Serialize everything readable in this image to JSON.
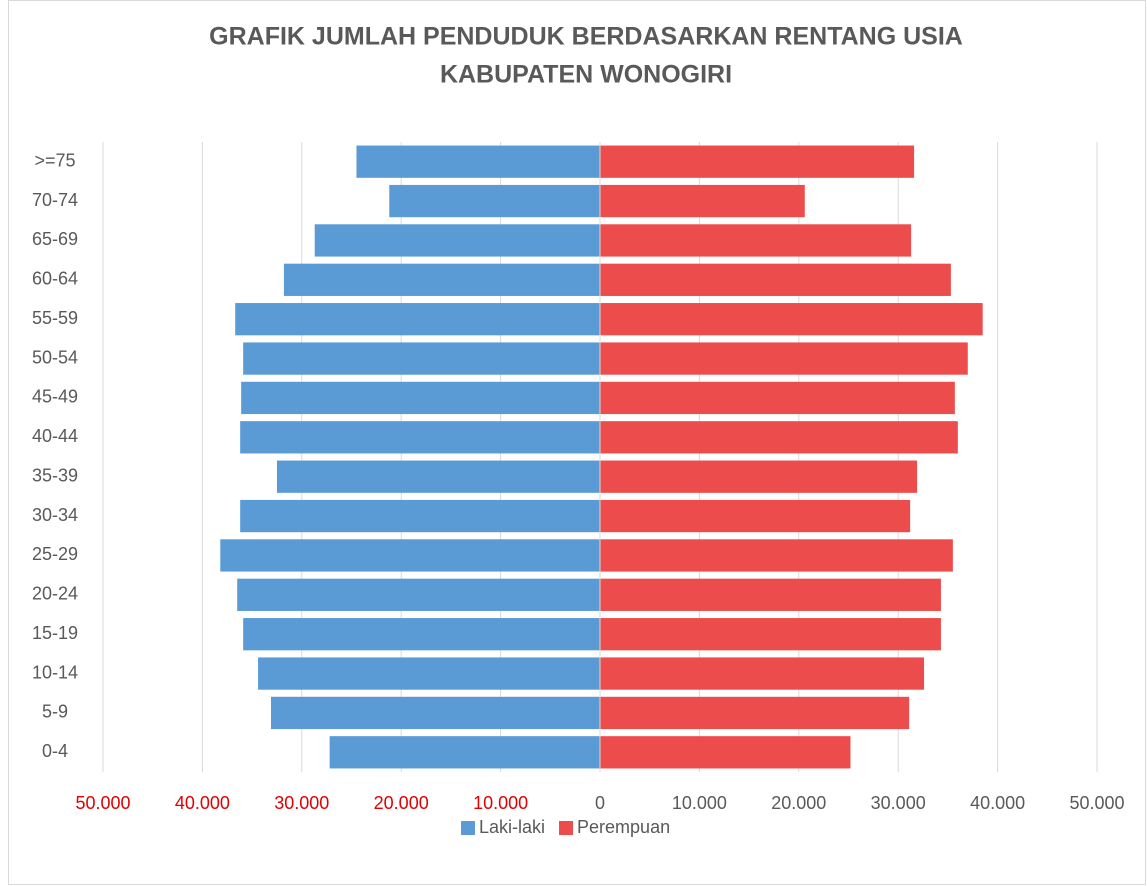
{
  "chart_data": {
    "type": "bar",
    "orientation": "horizontal",
    "title": [
      "GRAFIK JUMLAH PENDUDUK BERDASARKAN RENTANG USIA",
      "KABUPATEN WONOGIRI"
    ],
    "categories": [
      "0-4",
      "5-9",
      "10-14",
      "15-19",
      "20-24",
      "25-29",
      "30-34",
      "35-39",
      "40-44",
      "45-49",
      "50-54",
      "55-59",
      "60-64",
      "65-69",
      "70-74",
      ">=75"
    ],
    "series": [
      {
        "name": "Laki-laki",
        "color": "#5b9bd5",
        "values": [
          -27200,
          -33100,
          -34400,
          -35900,
          -36500,
          -38200,
          -36200,
          -32500,
          -36200,
          -36100,
          -35900,
          -36700,
          -31800,
          -28700,
          -21200,
          -24500
        ]
      },
      {
        "name": "Perempuan",
        "color": "#ed4c4c",
        "values": [
          25200,
          31100,
          32600,
          34300,
          34300,
          35500,
          31200,
          31900,
          36000,
          35700,
          37000,
          38500,
          35300,
          31300,
          20600,
          31600
        ]
      }
    ],
    "xlim": [
      -50000,
      50000
    ],
    "xticks": [
      {
        "value": -50000,
        "label": "50.000"
      },
      {
        "value": -40000,
        "label": "40.000"
      },
      {
        "value": -30000,
        "label": "30.000"
      },
      {
        "value": -20000,
        "label": "20.000"
      },
      {
        "value": -10000,
        "label": "10.000"
      },
      0,
      {
        "value": 10000,
        "label": "10.000"
      },
      {
        "value": 20000,
        "label": "20.000"
      },
      {
        "value": 30000,
        "label": "30.000"
      },
      {
        "value": 40000,
        "label": "40.000"
      },
      {
        "value": 50000,
        "label": "50.000"
      }
    ],
    "grid": true,
    "legend": "bottom"
  }
}
